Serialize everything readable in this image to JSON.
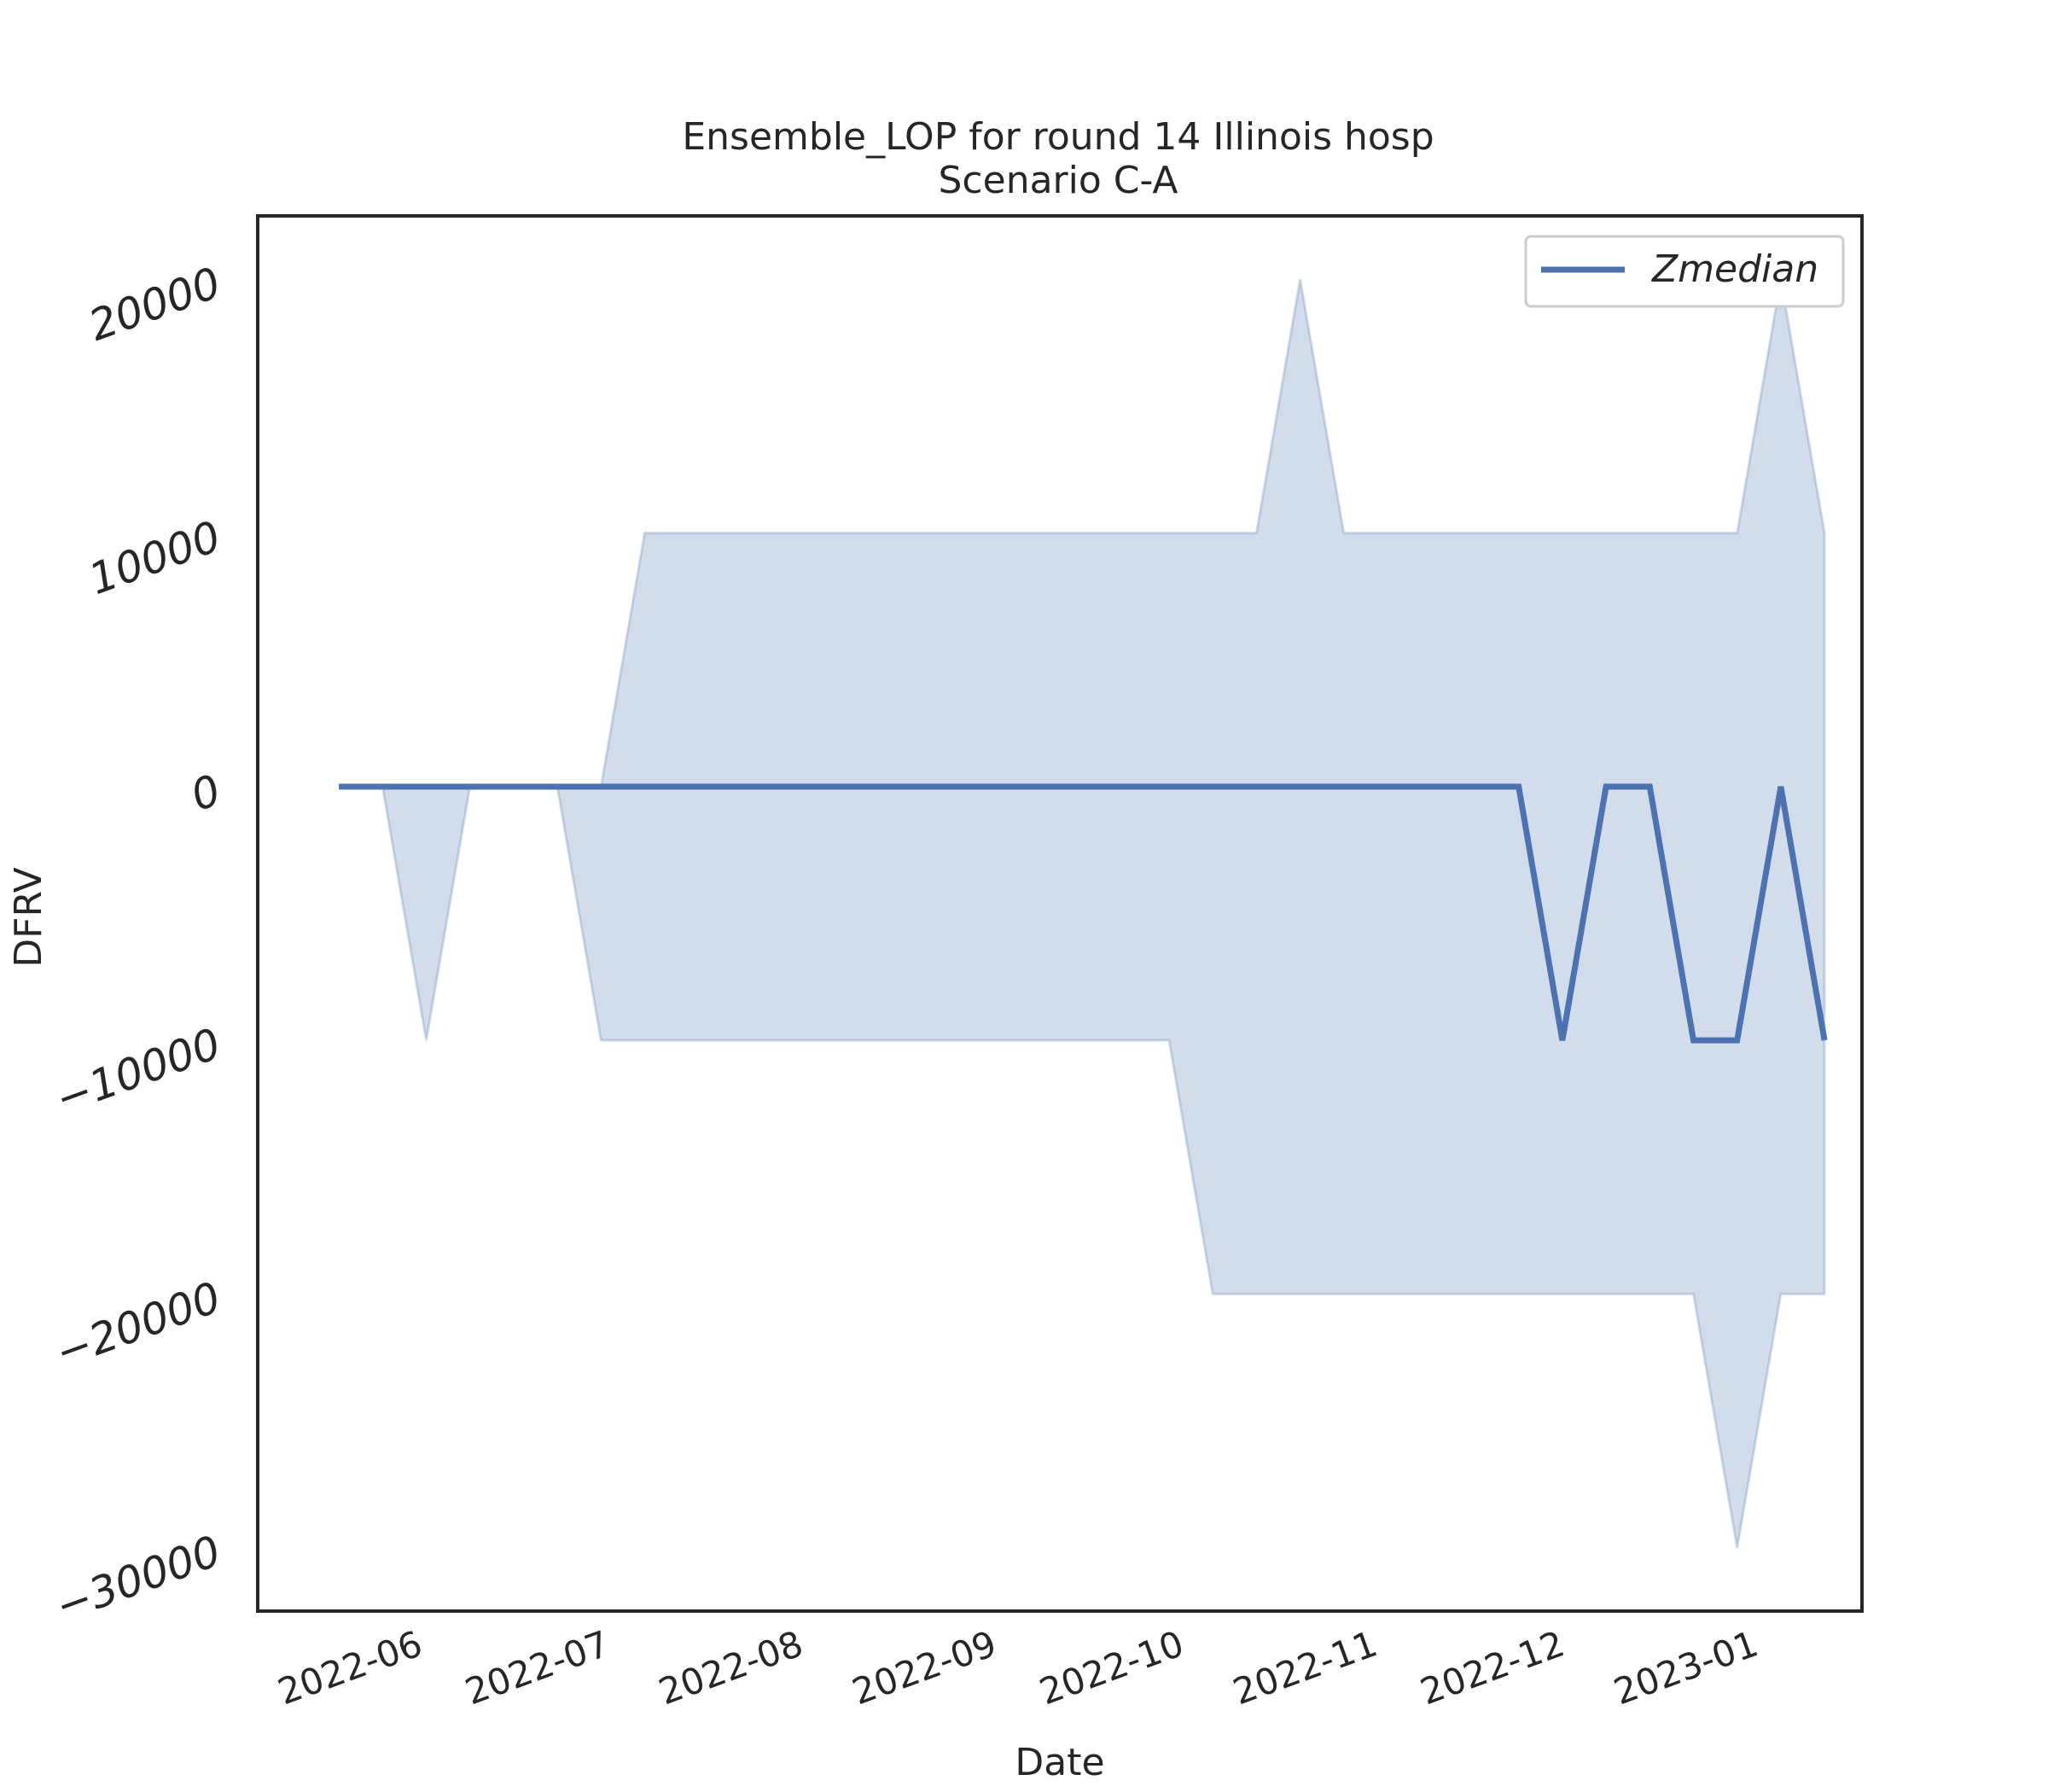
{
  "chart_data": {
    "type": "area",
    "title": "Ensemble_LOP for round 14 Illinois hosp",
    "subtitle": "Scenario C-A",
    "xlabel": "Date",
    "ylabel": "DFRV",
    "x_ticks": [
      "2022-06",
      "2022-07",
      "2022-08",
      "2022-09",
      "2022-10",
      "2022-11",
      "2022-12",
      "2023-01"
    ],
    "y_ticks": [
      20000,
      10000,
      0,
      -10000,
      -20000,
      -30000
    ],
    "y_tick_labels": [
      "20000",
      "10000",
      "0",
      "−10000",
      "−20000",
      "−30000"
    ],
    "xlim": [
      "2022-05-08",
      "2023-01-20"
    ],
    "ylim": [
      -32500,
      22500
    ],
    "grid": false,
    "legend_position": "top-right",
    "series": [
      {
        "name": "Zmedian",
        "color": "#4c72b0",
        "x": [
          "2022-05-21",
          "2022-05-28",
          "2022-06-04",
          "2022-06-11",
          "2022-06-18",
          "2022-06-25",
          "2022-07-02",
          "2022-07-09",
          "2022-07-16",
          "2022-07-23",
          "2022-07-30",
          "2022-08-06",
          "2022-08-13",
          "2022-08-20",
          "2022-08-27",
          "2022-09-03",
          "2022-09-10",
          "2022-09-17",
          "2022-09-24",
          "2022-10-01",
          "2022-10-08",
          "2022-10-15",
          "2022-10-22",
          "2022-10-29",
          "2022-11-05",
          "2022-11-12",
          "2022-11-19",
          "2022-11-26",
          "2022-12-03",
          "2022-12-10",
          "2022-12-17",
          "2022-12-24",
          "2022-12-31",
          "2023-01-07",
          "2023-01-14"
        ],
        "values": [
          0,
          0,
          0,
          0,
          0,
          0,
          0,
          0,
          0,
          0,
          0,
          0,
          0,
          0,
          0,
          0,
          0,
          0,
          0,
          0,
          0,
          0,
          0,
          0,
          0,
          0,
          0,
          0,
          -10000,
          0,
          0,
          -10000,
          -10000,
          0,
          -10000
        ],
        "lower": [
          0,
          0,
          -10000,
          0,
          0,
          0,
          -10000,
          -10000,
          -10000,
          -10000,
          -10000,
          -10000,
          -10000,
          -10000,
          -10000,
          -10000,
          -10000,
          -10000,
          -10000,
          -10000,
          -20000,
          -20000,
          -20000,
          -20000,
          -20000,
          -20000,
          -20000,
          -20000,
          -20000,
          -20000,
          -20000,
          -20000,
          -30000,
          -20000,
          -20000
        ],
        "upper": [
          0,
          0,
          0,
          0,
          0,
          0,
          0,
          10000,
          10000,
          10000,
          10000,
          10000,
          10000,
          10000,
          10000,
          10000,
          10000,
          10000,
          10000,
          10000,
          10000,
          10000,
          20000,
          10000,
          10000,
          10000,
          10000,
          10000,
          10000,
          10000,
          10000,
          10000,
          10000,
          20000,
          10000
        ]
      }
    ]
  }
}
